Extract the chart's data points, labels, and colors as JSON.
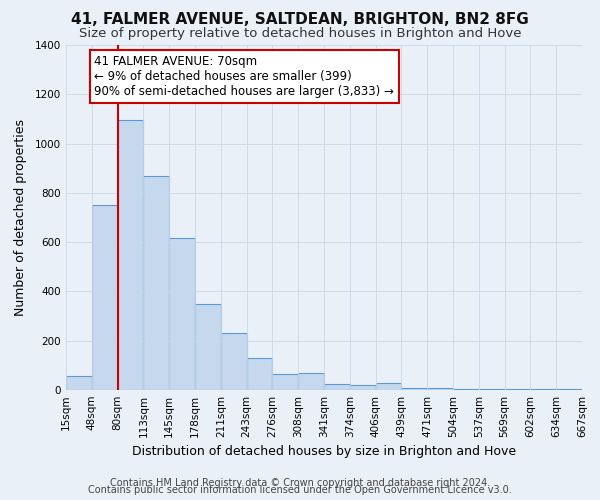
{
  "title": "41, FALMER AVENUE, SALTDEAN, BRIGHTON, BN2 8FG",
  "subtitle": "Size of property relative to detached houses in Brighton and Hove",
  "xlabel": "Distribution of detached houses by size in Brighton and Hove",
  "ylabel": "Number of detached properties",
  "footnote1": "Contains HM Land Registry data © Crown copyright and database right 2024.",
  "footnote2": "Contains public sector information licensed under the Open Government Licence v3.0.",
  "bin_labels": [
    "15sqm",
    "48sqm",
    "80sqm",
    "113sqm",
    "145sqm",
    "178sqm",
    "211sqm",
    "243sqm",
    "276sqm",
    "308sqm",
    "341sqm",
    "374sqm",
    "406sqm",
    "439sqm",
    "471sqm",
    "504sqm",
    "537sqm",
    "569sqm",
    "602sqm",
    "634sqm",
    "667sqm"
  ],
  "bar_values": [
    55,
    750,
    1095,
    870,
    615,
    350,
    230,
    130,
    65,
    70,
    25,
    20,
    30,
    10,
    8,
    5,
    5,
    5,
    5,
    5
  ],
  "bar_color": "#c5d8ed",
  "bar_edge_color": "#5b9bd5",
  "background_color": "#eaf0f8",
  "ylim": [
    0,
    1400
  ],
  "yticks": [
    0,
    200,
    400,
    600,
    800,
    1000,
    1200,
    1400
  ],
  "property_line_x": 2,
  "annotation_line1": "41 FALMER AVENUE: 70sqm",
  "annotation_line2": "← 9% of detached houses are smaller (399)",
  "annotation_line3": "90% of semi-detached houses are larger (3,833) →",
  "annotation_box_color": "#ffffff",
  "annotation_border_color": "#cc0000",
  "red_line_color": "#cc0000",
  "title_fontsize": 11,
  "subtitle_fontsize": 9.5,
  "annotation_fontsize": 8.5,
  "xlabel_fontsize": 9,
  "ylabel_fontsize": 9,
  "footnote_fontsize": 7,
  "tick_fontsize": 7.5
}
